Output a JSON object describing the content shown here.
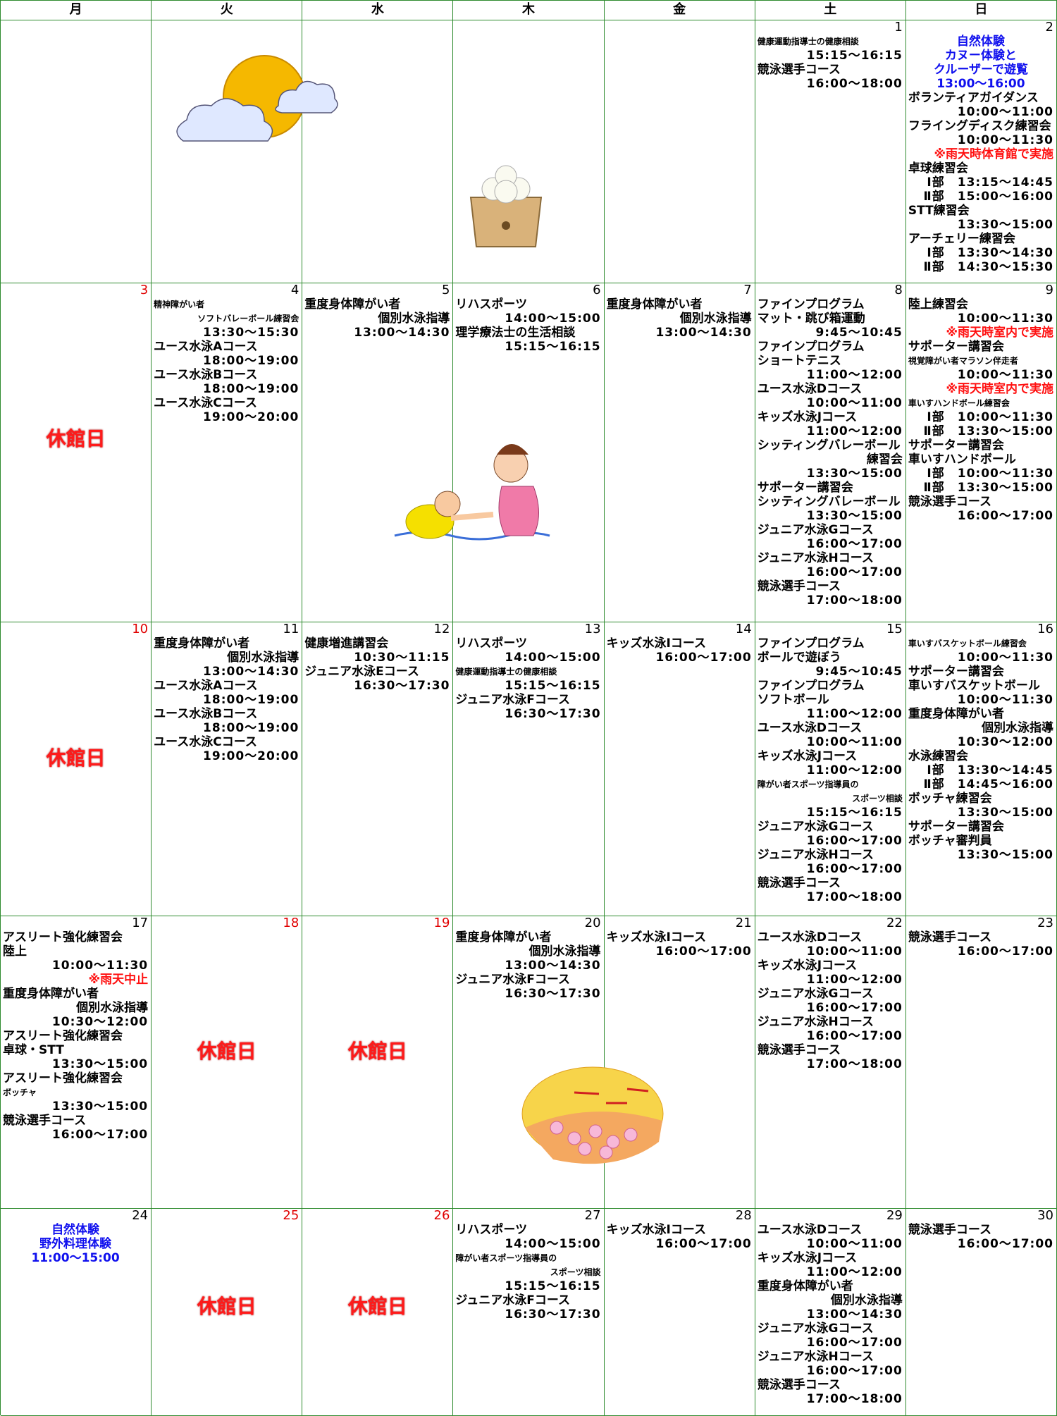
{
  "header": [
    "月",
    "火",
    "水",
    "木",
    "金",
    "土",
    "日"
  ],
  "weeks": [
    {
      "cells": [
        {},
        {},
        {},
        {},
        {},
        {
          "day": "1",
          "items": [
            {
              "small": "健康運動指導士の健康相談"
            },
            {
              "time": "15:15〜16:15"
            },
            {
              "t": "競泳選手コース"
            },
            {
              "time": "16:00〜18:00"
            }
          ]
        },
        {
          "day": "2",
          "items": [
            {
              "event": "自然体験"
            },
            {
              "event": "カヌー体験と"
            },
            {
              "event": "クルーザーで遊覧"
            },
            {
              "event": "13:00〜16:00"
            },
            {
              "t": "ボランティアガイダンス"
            },
            {
              "time": "10:00〜11:00"
            },
            {
              "t": "フライングディスク練習会"
            },
            {
              "time": "10:00〜11:30"
            },
            {
              "note": "※雨天時体育館で実施"
            },
            {
              "t": "卓球練習会"
            },
            {
              "time": "Ⅰ部　13:15〜14:45"
            },
            {
              "time": "Ⅱ部　15:00〜16:00"
            },
            {
              "t": "STT練習会"
            },
            {
              "time": "13:30〜15:00"
            },
            {
              "t": "アーチェリー練習会"
            },
            {
              "time": "Ⅰ部　13:30〜14:30"
            },
            {
              "time": "Ⅱ部　14:30〜15:30"
            }
          ]
        }
      ]
    },
    {
      "cells": [
        {
          "day": "3",
          "closed": "休館日",
          "items": []
        },
        {
          "day": "4",
          "items": [
            {
              "small": "精神障がい者"
            },
            {
              "ssub": "ソフトバレーボール練習会"
            },
            {
              "time": "13:30〜15:30"
            },
            {
              "t": "ユース水泳Aコース"
            },
            {
              "time": "18:00〜19:00"
            },
            {
              "t": "ユース水泳Bコース"
            },
            {
              "time": "18:00〜19:00"
            },
            {
              "t": "ユース水泳Cコース"
            },
            {
              "time": "19:00〜20:00"
            }
          ]
        },
        {
          "day": "5",
          "items": [
            {
              "t": "重度身体障がい者"
            },
            {
              "sub": "個別水泳指導"
            },
            {
              "time": "13:00〜14:30"
            }
          ]
        },
        {
          "day": "6",
          "items": [
            {
              "t": "リハスポーツ"
            },
            {
              "time": "14:00〜15:00"
            },
            {
              "t": "理学療法士の生活相談"
            },
            {
              "time": "15:15〜16:15"
            }
          ]
        },
        {
          "day": "7",
          "items": [
            {
              "t": "重度身体障がい者"
            },
            {
              "sub": "個別水泳指導"
            },
            {
              "time": "13:00〜14:30"
            }
          ]
        },
        {
          "day": "8",
          "items": [
            {
              "t": "ファインプログラム"
            },
            {
              "t": "マット・跳び箱運動"
            },
            {
              "time": "9:45〜10:45"
            },
            {
              "t": "ファインプログラム"
            },
            {
              "t": "ショートテニス"
            },
            {
              "time": "11:00〜12:00"
            },
            {
              "t": "ユース水泳Dコース"
            },
            {
              "time": "10:00〜11:00"
            },
            {
              "t": "キッズ水泳Jコース"
            },
            {
              "time": "11:00〜12:00"
            },
            {
              "t": "シッティングバレーボール"
            },
            {
              "sub": "練習会"
            },
            {
              "time": "13:30〜15:00"
            },
            {
              "t": "サポーター講習会"
            },
            {
              "t": "シッティングバレーボール"
            },
            {
              "time": "13:30〜15:00"
            },
            {
              "t": "ジュニア水泳Gコース"
            },
            {
              "time": "16:00〜17:00"
            },
            {
              "t": "ジュニア水泳Hコース"
            },
            {
              "time": "16:00〜17:00"
            },
            {
              "t": "競泳選手コース"
            },
            {
              "time": "17:00〜18:00"
            }
          ]
        },
        {
          "day": "9",
          "items": [
            {
              "t": "陸上練習会"
            },
            {
              "time": "10:00〜11:30"
            },
            {
              "note": "※雨天時室内で実施"
            },
            {
              "t": "サポーター講習会"
            },
            {
              "small": "視覚障がい者マラソン伴走者"
            },
            {
              "time": "10:00〜11:30"
            },
            {
              "note": "※雨天時室内で実施"
            },
            {
              "small": "車いすハンドボール練習会"
            },
            {
              "time": "Ⅰ部　10:00〜11:30"
            },
            {
              "time": "Ⅱ部　13:30〜15:00"
            },
            {
              "t": "サポーター講習会"
            },
            {
              "t": "車いすハンドボール"
            },
            {
              "time": "Ⅰ部　10:00〜11:30"
            },
            {
              "time": "Ⅱ部　13:30〜15:00"
            },
            {
              "t": "競泳選手コース"
            },
            {
              "time": "16:00〜17:00"
            }
          ]
        }
      ]
    },
    {
      "cells": [
        {
          "day": "10",
          "closed": "休館日",
          "items": []
        },
        {
          "day": "11",
          "items": [
            {
              "t": "重度身体障がい者"
            },
            {
              "sub": "個別水泳指導"
            },
            {
              "time": "13:00〜14:30"
            },
            {
              "t": "ユース水泳Aコース"
            },
            {
              "time": "18:00〜19:00"
            },
            {
              "t": "ユース水泳Bコース"
            },
            {
              "time": "18:00〜19:00"
            },
            {
              "t": "ユース水泳Cコース"
            },
            {
              "time": "19:00〜20:00"
            }
          ]
        },
        {
          "day": "12",
          "items": [
            {
              "t": "健康増進講習会"
            },
            {
              "time": "10:30〜11:15"
            },
            {
              "t": "ジュニア水泳Eコース"
            },
            {
              "time": "16:30〜17:30"
            }
          ]
        },
        {
          "day": "13",
          "items": [
            {
              "t": "リハスポーツ"
            },
            {
              "time": "14:00〜15:00"
            },
            {
              "small": "健康運動指導士の健康相談"
            },
            {
              "time": "15:15〜16:15"
            },
            {
              "t": "ジュニア水泳Fコース"
            },
            {
              "time": "16:30〜17:30"
            }
          ]
        },
        {
          "day": "14",
          "items": [
            {
              "t": "キッズ水泳Iコース"
            },
            {
              "time": "16:00〜17:00"
            }
          ]
        },
        {
          "day": "15",
          "items": [
            {
              "t": "ファインプログラム"
            },
            {
              "t": "ボールで遊ぼう"
            },
            {
              "time": "9:45〜10:45"
            },
            {
              "t": "ファインプログラム"
            },
            {
              "t": "ソフトボール"
            },
            {
              "time": "11:00〜12:00"
            },
            {
              "t": "ユース水泳Dコース"
            },
            {
              "time": "10:00〜11:00"
            },
            {
              "t": "キッズ水泳Jコース"
            },
            {
              "time": "11:00〜12:00"
            },
            {
              "small": "障がい者スポーツ指導員の"
            },
            {
              "ssub": "スポーツ相談"
            },
            {
              "time": "15:15〜16:15"
            },
            {
              "t": "ジュニア水泳Gコース"
            },
            {
              "time": "16:00〜17:00"
            },
            {
              "t": "ジュニア水泳Hコース"
            },
            {
              "time": "16:00〜17:00"
            },
            {
              "t": "競泳選手コース"
            },
            {
              "time": "17:00〜18:00"
            }
          ]
        },
        {
          "day": "16",
          "items": [
            {
              "small": "車いすバスケットボール練習会"
            },
            {
              "time": "10:00〜11:30"
            },
            {
              "t": "サポーター講習会"
            },
            {
              "t": "車いすバスケットボール"
            },
            {
              "time": "10:00〜11:30"
            },
            {
              "t": "重度身体障がい者"
            },
            {
              "sub": "個別水泳指導"
            },
            {
              "time": "10:30〜12:00"
            },
            {
              "t": "水泳練習会"
            },
            {
              "time": "Ⅰ部　13:30〜14:45"
            },
            {
              "time": "Ⅱ部　14:45〜16:00"
            },
            {
              "t": "ボッチャ練習会"
            },
            {
              "time": "13:30〜15:00"
            },
            {
              "t": "サポーター講習会"
            },
            {
              "t": "ボッチャ審判員"
            },
            {
              "time": "13:30〜15:00"
            }
          ]
        }
      ]
    },
    {
      "cells": [
        {
          "day": "17",
          "items": [
            {
              "t": "アスリート強化練習会"
            },
            {
              "t": "陸上"
            },
            {
              "time": "10:00〜11:30"
            },
            {
              "note": "※雨天中止"
            },
            {
              "t": "重度身体障がい者"
            },
            {
              "sub": "個別水泳指導"
            },
            {
              "time": "10:30〜12:00"
            },
            {
              "t": "アスリート強化練習会"
            },
            {
              "t": "卓球・STT"
            },
            {
              "time": "13:30〜15:00"
            },
            {
              "t": "アスリート強化練習会"
            },
            {
              "small": "ボッチャ"
            },
            {
              "time": "13:30〜15:00"
            },
            {
              "t": "競泳選手コース"
            },
            {
              "time": "16:00〜17:00"
            }
          ]
        },
        {
          "day": "18",
          "closed": "休館日",
          "items": []
        },
        {
          "day": "19",
          "closed": "休館日",
          "items": []
        },
        {
          "day": "20",
          "items": [
            {
              "t": "重度身体障がい者"
            },
            {
              "sub": "個別水泳指導"
            },
            {
              "time": "13:00〜14:30"
            },
            {
              "t": "ジュニア水泳Fコース"
            },
            {
              "time": "16:30〜17:30"
            }
          ]
        },
        {
          "day": "21",
          "items": [
            {
              "t": "キッズ水泳Iコース"
            },
            {
              "time": "16:00〜17:00"
            }
          ]
        },
        {
          "day": "22",
          "items": [
            {
              "t": "ユース水泳Dコース"
            },
            {
              "time": "10:00〜11:00"
            },
            {
              "t": "キッズ水泳Jコース"
            },
            {
              "time": "11:00〜12:00"
            },
            {
              "t": "ジュニア水泳Gコース"
            },
            {
              "time": "16:00〜17:00"
            },
            {
              "t": "ジュニア水泳Hコース"
            },
            {
              "time": "16:00〜17:00"
            },
            {
              "t": "競泳選手コース"
            },
            {
              "time": "17:00〜18:00"
            }
          ]
        },
        {
          "day": "23",
          "items": [
            {
              "t": "競泳選手コース"
            },
            {
              "time": "16:00〜17:00"
            }
          ]
        }
      ]
    },
    {
      "cells": [
        {
          "day": "24",
          "items": [
            {
              "event": "自然体験"
            },
            {
              "event": "野外料理体験"
            },
            {
              "event": "11:00〜15:00"
            }
          ]
        },
        {
          "day": "25",
          "closed": "休館日",
          "items": []
        },
        {
          "day": "26",
          "closed": "休館日",
          "items": []
        },
        {
          "day": "27",
          "items": [
            {
              "t": "リハスポーツ"
            },
            {
              "time": "14:00〜15:00"
            },
            {
              "small": "障がい者スポーツ指導員の"
            },
            {
              "ssub": "スポーツ相談"
            },
            {
              "time": "15:15〜16:15"
            },
            {
              "t": "ジュニア水泳Fコース"
            },
            {
              "time": "16:30〜17:30"
            }
          ]
        },
        {
          "day": "28",
          "items": [
            {
              "t": "キッズ水泳Iコース"
            },
            {
              "time": "16:00〜17:00"
            }
          ]
        },
        {
          "day": "29",
          "items": [
            {
              "t": "ユース水泳Dコース"
            },
            {
              "time": "10:00〜11:00"
            },
            {
              "t": "キッズ水泳Jコース"
            },
            {
              "time": "11:00〜12:00"
            },
            {
              "t": "重度身体障がい者"
            },
            {
              "sub": "個別水泳指導"
            },
            {
              "time": "13:00〜14:30"
            },
            {
              "t": "ジュニア水泳Gコース"
            },
            {
              "time": "16:00〜17:00"
            },
            {
              "t": "ジュニア水泳Hコース"
            },
            {
              "time": "16:00〜17:00"
            },
            {
              "t": "競泳選手コース"
            },
            {
              "time": "17:00〜18:00"
            }
          ]
        },
        {
          "day": "30",
          "items": [
            {
              "t": "競泳選手コース"
            },
            {
              "time": "16:00〜17:00"
            }
          ]
        }
      ]
    }
  ]
}
